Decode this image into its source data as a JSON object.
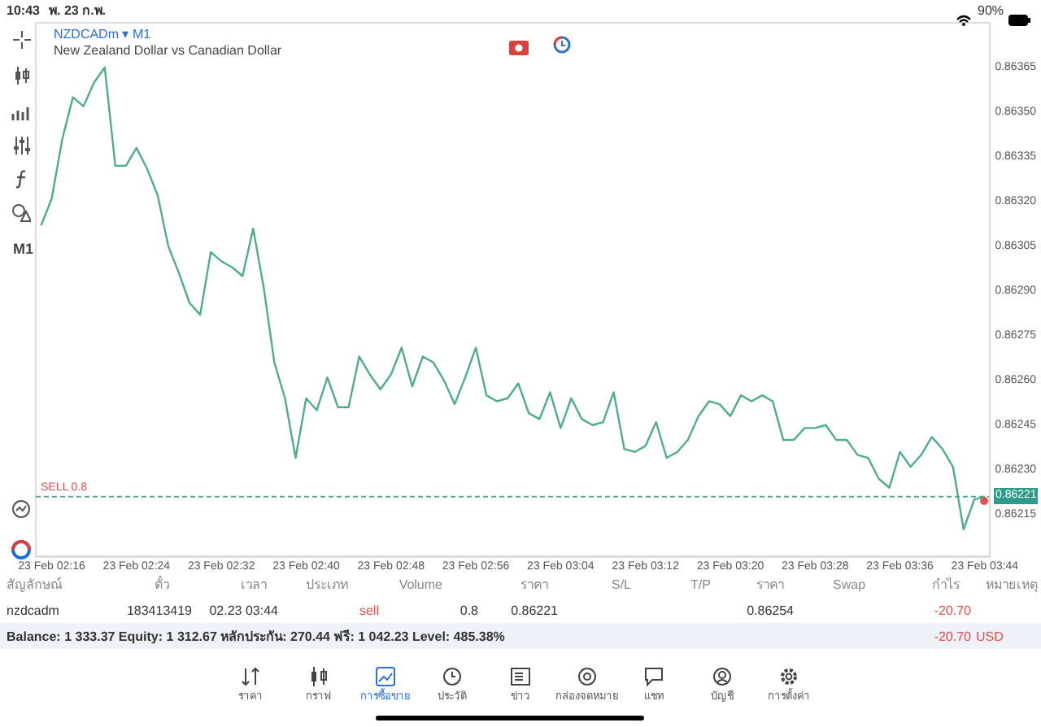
{
  "chart_data": {
    "type": "line",
    "title": "NZDCADm ▾ M1",
    "subtitle": "New Zealand Dollar vs Canadian Dollar",
    "categories": [
      null,
      "23 Feb 02:16",
      null,
      null,
      null,
      null,
      null,
      null,
      null,
      "23 Feb 02:24",
      null,
      null,
      null,
      null,
      null,
      null,
      null,
      "23 Feb 02:32",
      null,
      null,
      null,
      null,
      null,
      null,
      null,
      "23 Feb 02:40",
      null,
      null,
      null,
      null,
      null,
      null,
      null,
      "23 Feb 02:48",
      null,
      null,
      null,
      null,
      null,
      null,
      null,
      "23 Feb 02:56",
      null,
      null,
      null,
      null,
      null,
      null,
      null,
      "23 Feb 03:04",
      null,
      null,
      null,
      null,
      null,
      null,
      null,
      "23 Feb 03:12",
      null,
      null,
      null,
      null,
      null,
      null,
      null,
      "23 Feb 03:20",
      null,
      null,
      null,
      null,
      null,
      null,
      null,
      "23 Feb 03:28",
      null,
      null,
      null,
      null,
      null,
      null,
      null,
      "23 Feb 03:36",
      null,
      null,
      null,
      null,
      null,
      null,
      null,
      "23 Feb 03:44"
    ],
    "series": [
      {
        "color": "#4fae88",
        "values": [
          0.86312,
          0.86321,
          0.86341,
          0.86355,
          0.86352,
          0.8636,
          0.86365,
          0.86332,
          0.86332,
          0.86338,
          0.86331,
          0.86322,
          0.86305,
          0.86296,
          0.86286,
          0.86282,
          0.86303,
          0.863,
          0.86298,
          0.86295,
          0.86311,
          0.86291,
          0.86266,
          0.86254,
          0.86234,
          0.86254,
          0.8625,
          0.86261,
          0.86251,
          0.86251,
          0.86268,
          0.86262,
          0.86257,
          0.86262,
          0.86271,
          0.86258,
          0.86268,
          0.86266,
          0.8626,
          0.86252,
          0.86261,
          0.86271,
          0.86255,
          0.86253,
          0.86254,
          0.86259,
          0.86249,
          0.86247,
          0.86256,
          0.86244,
          0.86254,
          0.86247,
          0.86245,
          0.86246,
          0.86256,
          0.86237,
          0.86236,
          0.86238,
          0.86246,
          0.86234,
          0.86236,
          0.8624,
          0.86248,
          0.86253,
          0.86252,
          0.86248,
          0.86255,
          0.86253,
          0.86255,
          0.86253,
          0.8624,
          0.8624,
          0.86244,
          0.86244,
          0.86245,
          0.8624,
          0.8624,
          0.86235,
          0.86234,
          0.86227,
          0.86224,
          0.86236,
          0.86231,
          0.86235,
          0.86241,
          0.86237,
          0.86231,
          0.8621,
          0.8622,
          0.86221
        ]
      }
    ],
    "ylim": [
      0.86201,
      0.8638
    ],
    "yticks": [
      {
        "value": 0.86215,
        "label": "0.86215"
      },
      {
        "value": 0.8623,
        "label": "0.86230"
      },
      {
        "value": 0.86245,
        "label": "0.86245"
      },
      {
        "value": 0.8626,
        "label": "0.86260"
      },
      {
        "value": 0.86275,
        "label": "0.86275"
      },
      {
        "value": 0.8629,
        "label": "0.86290"
      },
      {
        "value": 0.86305,
        "label": "0.86305"
      },
      {
        "value": 0.8632,
        "label": "0.86320"
      },
      {
        "value": 0.86335,
        "label": "0.86335"
      },
      {
        "value": 0.8635,
        "label": "0.86350"
      },
      {
        "value": 0.86365,
        "label": "0.86365"
      }
    ],
    "ref_lines": [
      {
        "axis": "y",
        "value": 0.86221,
        "label": "SELL 0.8",
        "color": "#5aa89a",
        "line_style": "dashed"
      }
    ],
    "grid": false,
    "annotations": [
      "10:43",
      "พ. 23 ก.พ.",
      "90%",
      "M1",
      "สัญลักษณ์",
      "ตั๋ว",
      "เวลา",
      "ประเภท",
      "Volume",
      "ราคา",
      "S/L",
      "T/P",
      "ราคา",
      "Swap",
      "กำไร",
      "หมายเหตุ",
      "nzdcadm",
      "183413419",
      "02.23 03:44",
      "sell",
      "0.8",
      "0.86221",
      "0.86254",
      "-20.70",
      "Balance: 1 333.37 Equity: 1 312.67 หลักประกัน: 270.44 ฟรี: 1 042.23 Level: 485.38%",
      "-20.70",
      "USD",
      "ราคา",
      "กราฟ",
      "การซื้อขาย",
      "ประวัติ",
      "ข่าว",
      "กล่องจดหมาย",
      "แชท",
      "บัญชี",
      "การตั้งค่า",
      {
        "text": "0.86221",
        "y": 0.86221
      }
    ]
  }
}
